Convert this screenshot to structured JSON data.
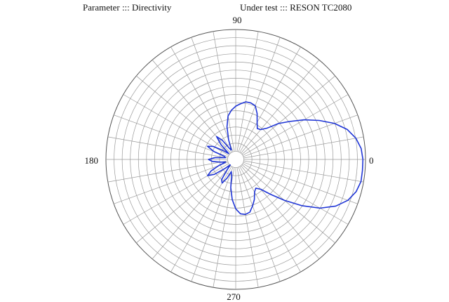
{
  "header": {
    "parameter": "Parameter :::  Directivity",
    "under_test": "Under test ::: RESON TC2080"
  },
  "chart_data": {
    "type": "polar",
    "title": "",
    "angle_unit": "degrees",
    "angle_labels": [
      "0",
      "90",
      "180",
      "270"
    ],
    "radial_rings": 16,
    "radial_spokes_every_deg": 10,
    "grid": true,
    "r_range": [
      0,
      1
    ],
    "series": [
      {
        "color": "#1f35d6",
        "points": [
          [
            0,
            0.98
          ],
          [
            5,
            0.97
          ],
          [
            10,
            0.94
          ],
          [
            15,
            0.89
          ],
          [
            20,
            0.81
          ],
          [
            25,
            0.71
          ],
          [
            30,
            0.61
          ],
          [
            35,
            0.51
          ],
          [
            40,
            0.43
          ],
          [
            45,
            0.34
          ],
          [
            50,
            0.3
          ],
          [
            55,
            0.29
          ],
          [
            60,
            0.33
          ],
          [
            65,
            0.39
          ],
          [
            70,
            0.44
          ],
          [
            75,
            0.45
          ],
          [
            80,
            0.45
          ],
          [
            85,
            0.43
          ],
          [
            90,
            0.41
          ],
          [
            95,
            0.38
          ],
          [
            100,
            0.34
          ],
          [
            105,
            0.26
          ],
          [
            110,
            0.16
          ],
          [
            115,
            0.08
          ],
          [
            120,
            0.1
          ],
          [
            125,
            0.18
          ],
          [
            130,
            0.23
          ],
          [
            135,
            0.16
          ],
          [
            140,
            0.07
          ],
          [
            145,
            0.12
          ],
          [
            150,
            0.2
          ],
          [
            155,
            0.24
          ],
          [
            160,
            0.18
          ],
          [
            165,
            0.09
          ],
          [
            170,
            0.08
          ],
          [
            175,
            0.16
          ],
          [
            180,
            0.21
          ],
          [
            185,
            0.18
          ],
          [
            190,
            0.12
          ],
          [
            195,
            0.08
          ],
          [
            200,
            0.14
          ],
          [
            205,
            0.21
          ],
          [
            210,
            0.25
          ],
          [
            215,
            0.2
          ],
          [
            220,
            0.11
          ],
          [
            225,
            0.06
          ],
          [
            230,
            0.1
          ],
          [
            235,
            0.19
          ],
          [
            240,
            0.21
          ],
          [
            245,
            0.16
          ],
          [
            250,
            0.1
          ],
          [
            255,
            0.12
          ],
          [
            260,
            0.22
          ],
          [
            265,
            0.31
          ],
          [
            270,
            0.38
          ],
          [
            275,
            0.42
          ],
          [
            280,
            0.43
          ],
          [
            285,
            0.42
          ],
          [
            290,
            0.38
          ],
          [
            295,
            0.34
          ],
          [
            300,
            0.29
          ],
          [
            305,
            0.27
          ],
          [
            310,
            0.3
          ],
          [
            315,
            0.38
          ],
          [
            320,
            0.49
          ],
          [
            325,
            0.62
          ],
          [
            330,
            0.75
          ],
          [
            335,
            0.85
          ],
          [
            340,
            0.92
          ],
          [
            345,
            0.96
          ],
          [
            350,
            0.98
          ],
          [
            355,
            0.98
          ],
          [
            360,
            0.98
          ]
        ]
      }
    ]
  }
}
